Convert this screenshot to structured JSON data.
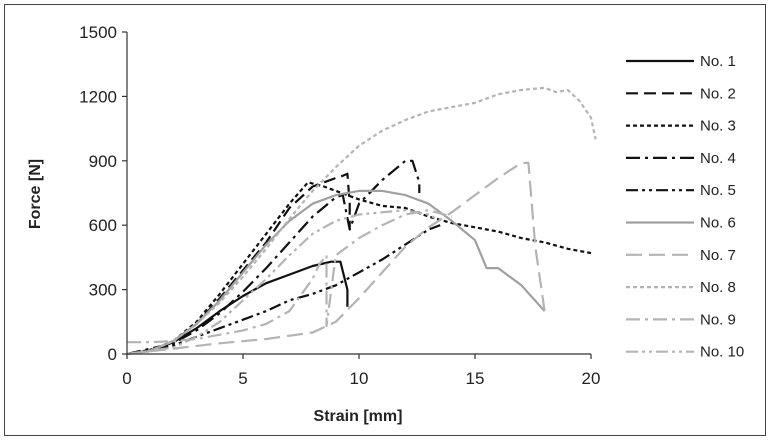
{
  "chart_data": {
    "type": "line",
    "xlabel": "Strain [mm]",
    "ylabel": "Force [N]",
    "xlim": [
      0,
      20
    ],
    "ylim": [
      0,
      1500
    ],
    "xticks": [
      0,
      5,
      10,
      15,
      20
    ],
    "yticks": [
      0,
      300,
      600,
      900,
      1200,
      1500
    ],
    "grid": false,
    "legend_position": "right",
    "series": [
      {
        "name": "No. 1",
        "color": "#111111",
        "dash": "",
        "width": 2.2,
        "x": [
          0,
          1,
          2,
          3,
          4,
          5,
          6,
          7,
          8,
          8.8,
          9.2,
          9.5,
          9.5
        ],
        "y": [
          0,
          15,
          55,
          120,
          200,
          270,
          330,
          370,
          410,
          430,
          430,
          300,
          220
        ]
      },
      {
        "name": "No. 2",
        "color": "#111111",
        "dash": "12,6",
        "width": 2.2,
        "x": [
          0,
          1,
          2,
          3,
          4,
          5,
          6,
          6.5,
          7,
          8,
          9,
          9.3,
          9.5,
          9.6,
          9.6
        ],
        "y": [
          0,
          15,
          60,
          140,
          260,
          390,
          520,
          600,
          680,
          780,
          820,
          830,
          840,
          700,
          580
        ]
      },
      {
        "name": "No. 3",
        "color": "#111111",
        "dash": "4,3",
        "width": 2.2,
        "x": [
          0,
          1,
          2,
          3,
          4,
          5,
          6,
          7,
          7.8,
          8.5,
          9,
          10,
          11,
          12,
          13,
          14,
          15,
          16,
          17,
          18,
          19,
          20
        ],
        "y": [
          0,
          15,
          60,
          150,
          280,
          420,
          560,
          700,
          800,
          780,
          760,
          720,
          690,
          680,
          640,
          610,
          590,
          570,
          540,
          520,
          490,
          470
        ]
      },
      {
        "name": "No. 4",
        "color": "#111111",
        "dash": "14,5,3,5",
        "width": 2.2,
        "x": [
          0,
          2,
          3,
          4,
          5,
          6,
          7,
          8,
          9,
          9.3,
          9.6,
          10,
          11,
          12,
          12.3,
          12.6,
          12.6
        ],
        "y": [
          0,
          50,
          110,
          190,
          290,
          400,
          520,
          640,
          730,
          740,
          580,
          700,
          810,
          900,
          900,
          800,
          750
        ]
      },
      {
        "name": "No. 5",
        "color": "#111111",
        "dash": "12,4,3,4,3,4",
        "width": 2.2,
        "x": [
          0,
          2,
          3,
          4,
          5,
          6,
          7,
          8,
          9,
          10,
          11,
          12,
          13,
          13.5
        ],
        "y": [
          0,
          40,
          80,
          120,
          160,
          200,
          250,
          280,
          320,
          380,
          440,
          510,
          580,
          600
        ]
      },
      {
        "name": "No. 6",
        "color": "#a0a0a0",
        "dash": "",
        "width": 2.2,
        "x": [
          0,
          1,
          2,
          3,
          4,
          5,
          6,
          7,
          8,
          9,
          10,
          11,
          12,
          13,
          14,
          15,
          15.5,
          16,
          17,
          18
        ],
        "y": [
          0,
          15,
          60,
          140,
          250,
          380,
          510,
          620,
          700,
          740,
          760,
          760,
          740,
          700,
          620,
          530,
          400,
          400,
          320,
          200
        ]
      },
      {
        "name": "No. 7",
        "color": "#b4b4b4",
        "dash": "16,7",
        "width": 2.2,
        "x": [
          0,
          2,
          4,
          6,
          8,
          9,
          10,
          11,
          12,
          13,
          14,
          15,
          16,
          17,
          17.3,
          17.6,
          18
        ],
        "y": [
          0,
          25,
          50,
          70,
          100,
          150,
          260,
          380,
          500,
          590,
          660,
          740,
          820,
          890,
          890,
          500,
          200
        ]
      },
      {
        "name": "No. 8",
        "color": "#b4b4b4",
        "dash": "4,3",
        "width": 2.2,
        "x": [
          0,
          1,
          2,
          3,
          4,
          5,
          6,
          7,
          8,
          9,
          10,
          11,
          12,
          13,
          14,
          15,
          16,
          17,
          18,
          18.5,
          19,
          19.5,
          20,
          20.2
        ],
        "y": [
          0,
          15,
          60,
          140,
          240,
          360,
          490,
          630,
          760,
          870,
          970,
          1040,
          1090,
          1130,
          1150,
          1170,
          1210,
          1230,
          1240,
          1220,
          1230,
          1180,
          1100,
          1000
        ]
      },
      {
        "name": "No. 9",
        "color": "#b4b4b4",
        "dash": "14,5,3,5",
        "width": 2.2,
        "x": [
          0,
          0.5,
          1,
          2,
          3,
          4,
          5,
          6,
          7,
          8,
          8.3,
          8.6,
          8.6,
          9,
          10,
          11,
          12,
          13,
          14
        ],
        "y": [
          55,
          55,
          55,
          60,
          70,
          90,
          110,
          140,
          200,
          350,
          420,
          460,
          130,
          460,
          540,
          600,
          650,
          670,
          640
        ]
      },
      {
        "name": "No. 10",
        "color": "#b4b4b4",
        "dash": "12,4,3,4,3,4",
        "width": 2.2,
        "x": [
          0,
          2,
          3,
          4,
          5,
          6,
          7,
          8,
          9,
          10,
          11,
          12,
          13,
          13.5
        ],
        "y": [
          0,
          30,
          80,
          150,
          250,
          350,
          460,
          560,
          620,
          650,
          660,
          670,
          650,
          620
        ]
      }
    ]
  }
}
